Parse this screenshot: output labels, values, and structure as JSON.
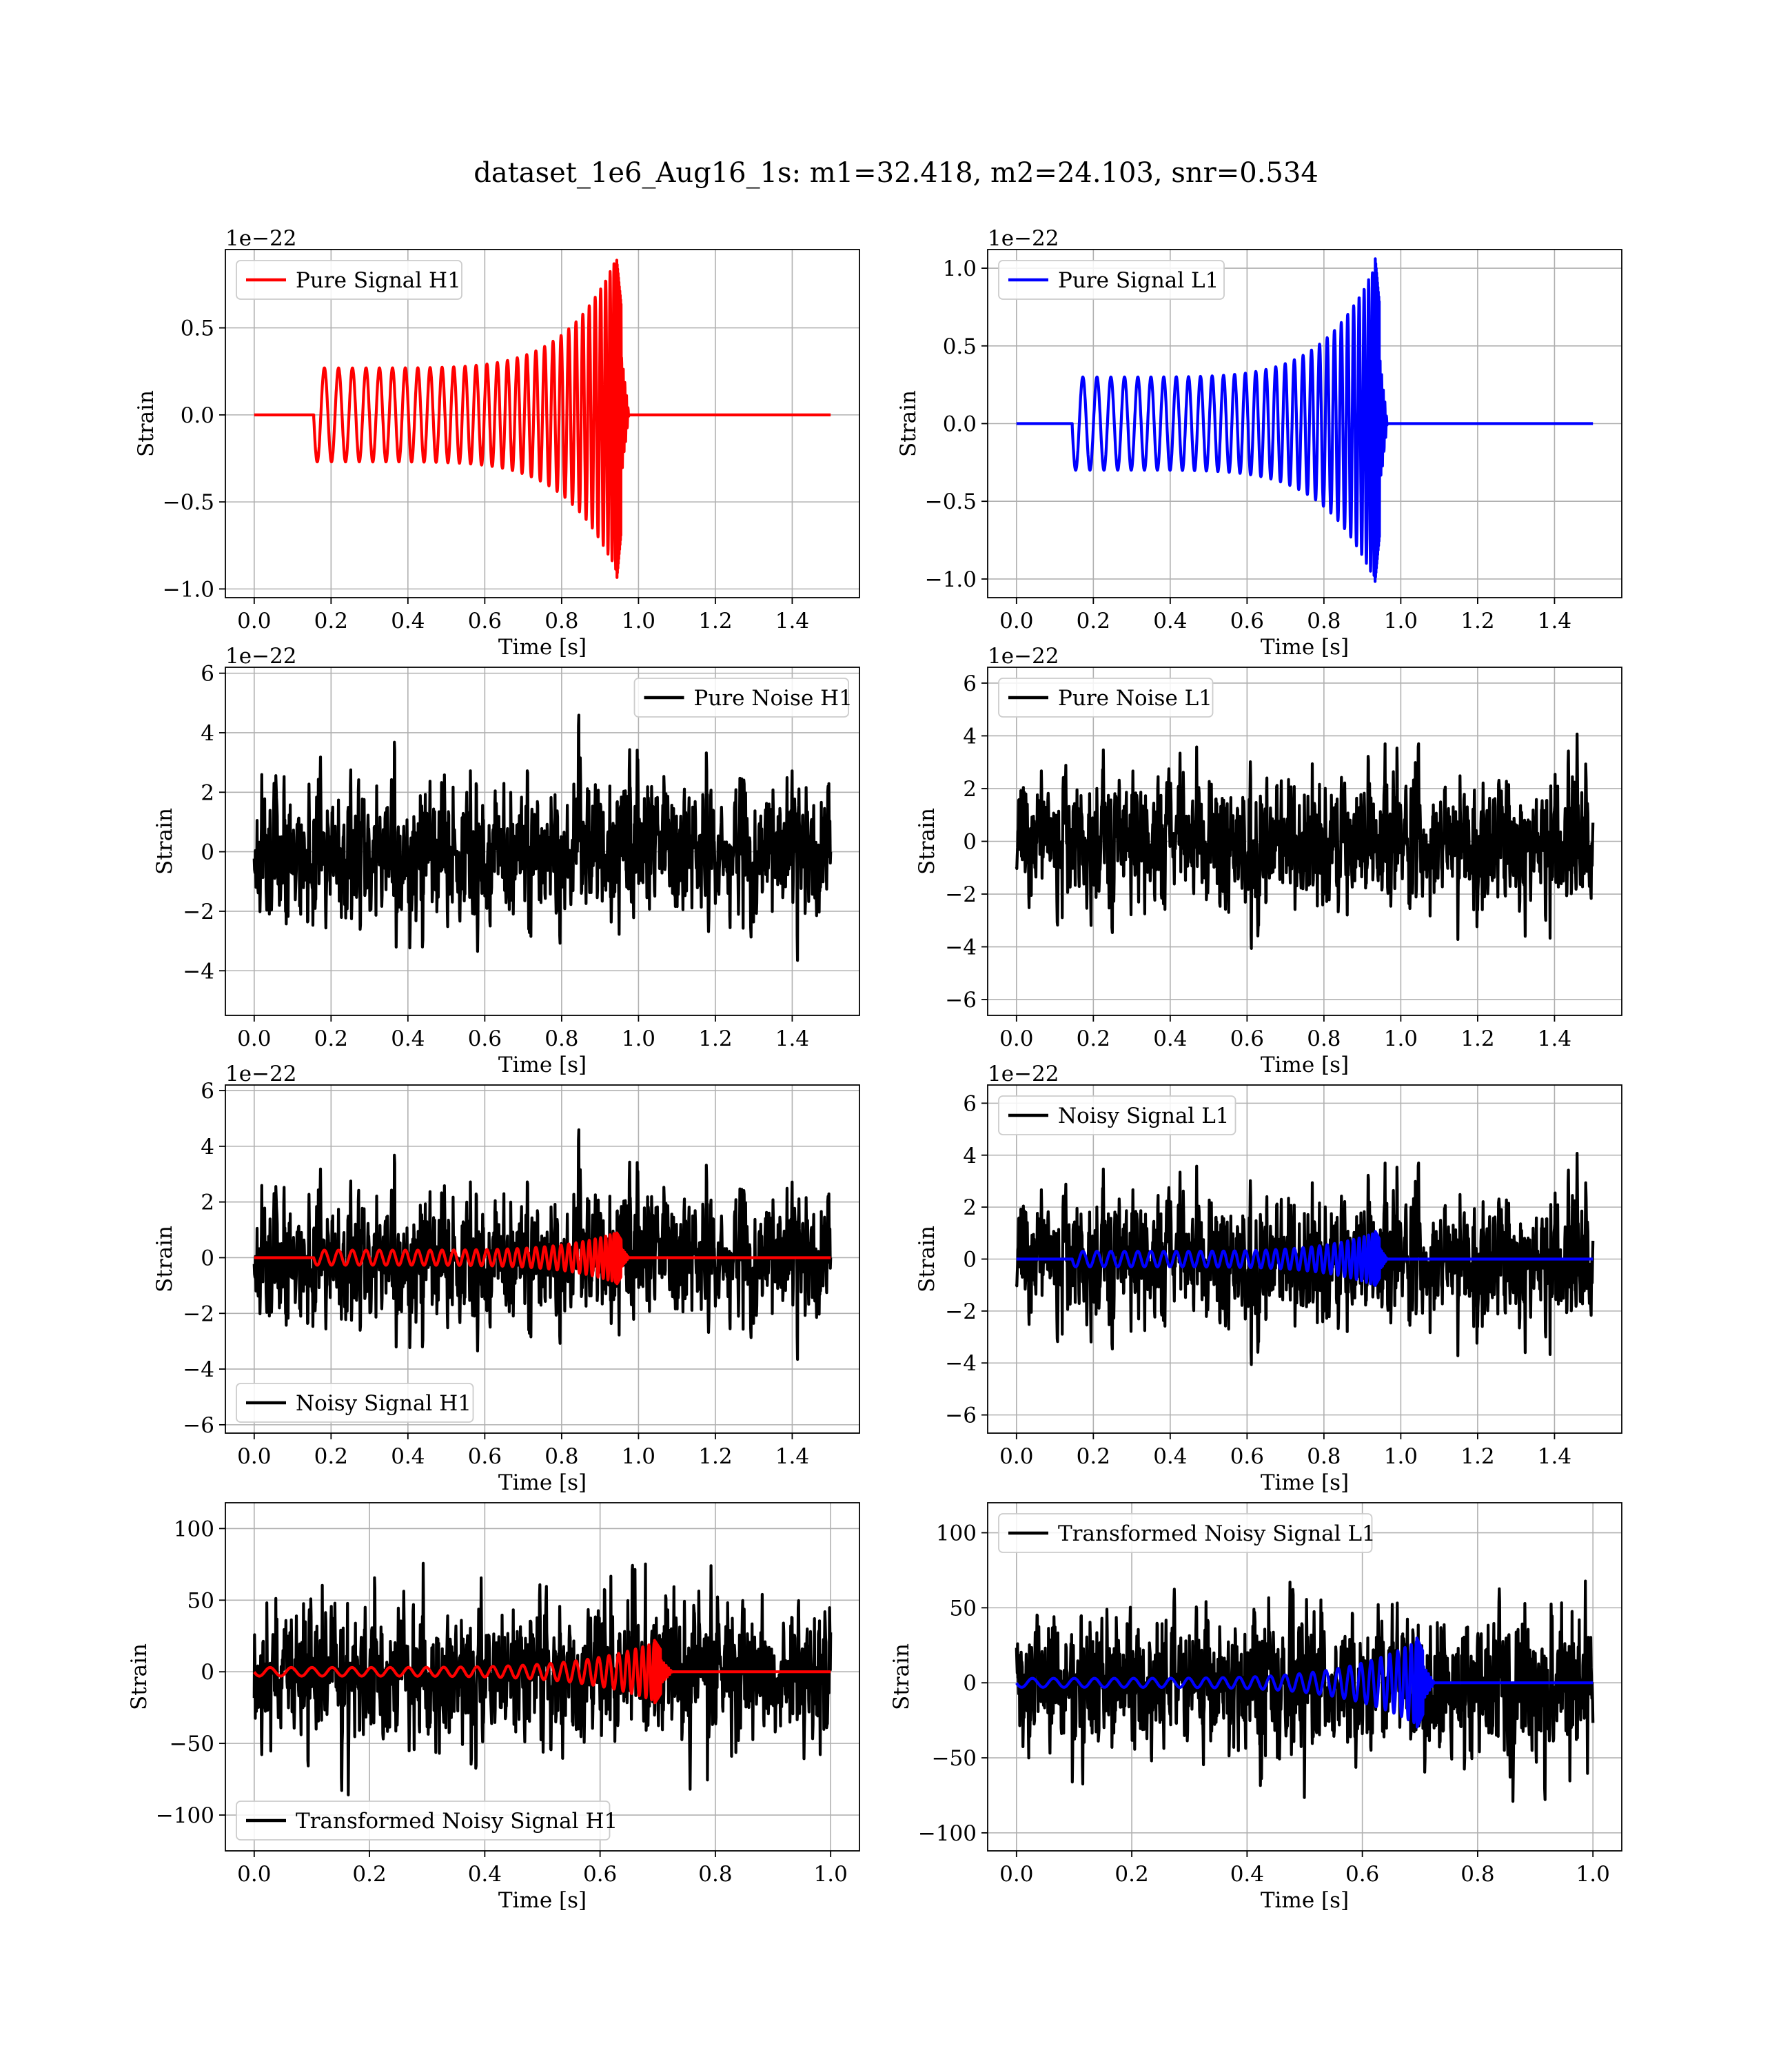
{
  "figure": {
    "title": "dataset_1e6_Aug16_1s: m1=32.418, m2=24.103, snr=0.534",
    "colors": {
      "h1_signal": "#ff0000",
      "l1_signal": "#0000ff",
      "noise": "#000000",
      "grid": "#b0b0b0"
    }
  },
  "chart_data": [
    {
      "id": "pure-signal-h1",
      "type": "line",
      "xlabel": "Time [s]",
      "ylabel": "Strain",
      "offset_text": "1e−22",
      "xlim": [
        -0.075,
        1.575
      ],
      "ylim": [
        -1.05,
        0.95
      ],
      "xticks": [
        0.0,
        0.2,
        0.4,
        0.6,
        0.8,
        1.0,
        1.2,
        1.4
      ],
      "yticks": [
        -1.0,
        -0.5,
        0.0,
        0.5
      ],
      "grid": true,
      "legend_position": "upper left",
      "series": [
        {
          "name": "Pure Signal H1",
          "kind": "chirp",
          "color": "#ff0000",
          "t_start": 0.155,
          "t_merge": 0.955,
          "t_end": 1.5,
          "amp_start": 0.27,
          "amp_peak": 0.9,
          "amp_peak_neg": -0.96,
          "cycles": 34,
          "in_legend": true
        }
      ]
    },
    {
      "id": "pure-signal-l1",
      "type": "line",
      "xlabel": "Time [s]",
      "ylabel": "Strain",
      "offset_text": "1e−22",
      "xlim": [
        -0.075,
        1.575
      ],
      "ylim": [
        -1.12,
        1.12
      ],
      "xticks": [
        0.0,
        0.2,
        0.4,
        0.6,
        0.8,
        1.0,
        1.2,
        1.4
      ],
      "yticks": [
        -1.0,
        -0.5,
        0.0,
        0.5,
        1.0
      ],
      "grid": true,
      "legend_position": "upper left",
      "series": [
        {
          "name": "Pure Signal L1",
          "kind": "chirp",
          "color": "#0000ff",
          "t_start": 0.145,
          "t_merge": 0.945,
          "t_end": 1.5,
          "amp_start": 0.3,
          "amp_peak": 1.08,
          "amp_peak_neg": -1.02,
          "cycles": 34,
          "in_legend": true
        }
      ]
    },
    {
      "id": "pure-noise-h1",
      "type": "line",
      "xlabel": "Time [s]",
      "ylabel": "Strain",
      "offset_text": "1e−22",
      "xlim": [
        -0.075,
        1.575
      ],
      "ylim": [
        -5.5,
        6.2
      ],
      "xticks": [
        0.0,
        0.2,
        0.4,
        0.6,
        0.8,
        1.0,
        1.2,
        1.4
      ],
      "yticks": [
        -4,
        -2,
        0,
        2,
        4,
        6
      ],
      "grid": true,
      "legend_position": "upper right",
      "series": [
        {
          "name": "Pure Noise H1",
          "kind": "noise",
          "color": "#000000",
          "t_start": 0.0,
          "t_end": 1.5,
          "sigma": 1.5,
          "seed": 11,
          "in_legend": true
        }
      ]
    },
    {
      "id": "pure-noise-l1",
      "type": "line",
      "xlabel": "Time [s]",
      "ylabel": "Strain",
      "offset_text": "1e−22",
      "xlim": [
        -0.075,
        1.575
      ],
      "ylim": [
        -6.6,
        6.6
      ],
      "xticks": [
        0.0,
        0.2,
        0.4,
        0.6,
        0.8,
        1.0,
        1.2,
        1.4
      ],
      "yticks": [
        -6,
        -4,
        -2,
        0,
        2,
        4,
        6
      ],
      "grid": true,
      "legend_position": "upper left",
      "series": [
        {
          "name": "Pure Noise L1",
          "kind": "noise",
          "color": "#000000",
          "t_start": 0.0,
          "t_end": 1.5,
          "sigma": 1.6,
          "seed": 23,
          "in_legend": true
        }
      ]
    },
    {
      "id": "noisy-signal-h1",
      "type": "line",
      "xlabel": "Time [s]",
      "ylabel": "Strain",
      "offset_text": "1e−22",
      "xlim": [
        -0.075,
        1.575
      ],
      "ylim": [
        -6.3,
        6.2
      ],
      "xticks": [
        0.0,
        0.2,
        0.4,
        0.6,
        0.8,
        1.0,
        1.2,
        1.4
      ],
      "yticks": [
        -6,
        -4,
        -2,
        0,
        2,
        4,
        6
      ],
      "grid": true,
      "legend_position": "lower left",
      "series": [
        {
          "name": "Noisy Signal H1",
          "kind": "noise",
          "color": "#000000",
          "t_start": 0.0,
          "t_end": 1.5,
          "sigma": 1.5,
          "seed": 11,
          "in_legend": true
        },
        {
          "name": "",
          "kind": "chirp",
          "color": "#ff0000",
          "t_start": 0.155,
          "t_merge": 0.955,
          "t_end": 1.5,
          "amp_start": 0.27,
          "amp_peak": 0.9,
          "amp_peak_neg": -0.96,
          "cycles": 34,
          "in_legend": false
        }
      ]
    },
    {
      "id": "noisy-signal-l1",
      "type": "line",
      "xlabel": "Time [s]",
      "ylabel": "Strain",
      "offset_text": "1e−22",
      "xlim": [
        -0.075,
        1.575
      ],
      "ylim": [
        -6.7,
        6.7
      ],
      "xticks": [
        0.0,
        0.2,
        0.4,
        0.6,
        0.8,
        1.0,
        1.2,
        1.4
      ],
      "yticks": [
        -6,
        -4,
        -2,
        0,
        2,
        4,
        6
      ],
      "grid": true,
      "legend_position": "upper left",
      "series": [
        {
          "name": "Noisy Signal L1",
          "kind": "noise",
          "color": "#000000",
          "t_start": 0.0,
          "t_end": 1.5,
          "sigma": 1.6,
          "seed": 23,
          "in_legend": true
        },
        {
          "name": "",
          "kind": "chirp",
          "color": "#0000ff",
          "t_start": 0.145,
          "t_merge": 0.945,
          "t_end": 1.5,
          "amp_start": 0.3,
          "amp_peak": 1.08,
          "amp_peak_neg": -1.02,
          "cycles": 34,
          "in_legend": false
        }
      ]
    },
    {
      "id": "transformed-noisy-signal-h1",
      "type": "line",
      "xlabel": "Time [s]",
      "ylabel": "Strain",
      "offset_text": "",
      "xlim": [
        -0.05,
        1.05
      ],
      "ylim": [
        -125,
        118
      ],
      "xticks": [
        0.0,
        0.2,
        0.4,
        0.6,
        0.8,
        1.0
      ],
      "yticks": [
        -100,
        -50,
        0,
        50,
        100
      ],
      "grid": true,
      "legend_position": "lower left",
      "series": [
        {
          "name": "Transformed Noisy Signal H1",
          "kind": "noise",
          "color": "#000000",
          "t_start": 0.0,
          "t_end": 1.0,
          "sigma": 30,
          "seed": 37,
          "in_legend": true
        },
        {
          "name": "",
          "kind": "chirp",
          "color": "#ff0000",
          "t_start": 0.0,
          "t_merge": 0.705,
          "t_end": 1.0,
          "amp_start": 3,
          "amp_peak": 22,
          "amp_peak_neg": -22,
          "cycles": 30,
          "in_legend": false
        }
      ]
    },
    {
      "id": "transformed-noisy-signal-l1",
      "type": "line",
      "xlabel": "Time [s]",
      "ylabel": "Strain",
      "offset_text": "",
      "xlim": [
        -0.05,
        1.05
      ],
      "ylim": [
        -112,
        120
      ],
      "xticks": [
        0.0,
        0.2,
        0.4,
        0.6,
        0.8,
        1.0
      ],
      "yticks": [
        -100,
        -50,
        0,
        50,
        100
      ],
      "grid": true,
      "legend_position": "upper left",
      "series": [
        {
          "name": "Transformed Noisy Signal L1",
          "kind": "noise",
          "color": "#000000",
          "t_start": 0.0,
          "t_end": 1.0,
          "sigma": 30,
          "seed": 53,
          "in_legend": true
        },
        {
          "name": "",
          "kind": "chirp",
          "color": "#0000ff",
          "t_start": 0.0,
          "t_merge": 0.705,
          "t_end": 1.0,
          "amp_start": 3,
          "amp_peak": 30,
          "amp_peak_neg": -30,
          "cycles": 30,
          "in_legend": false
        }
      ]
    }
  ]
}
